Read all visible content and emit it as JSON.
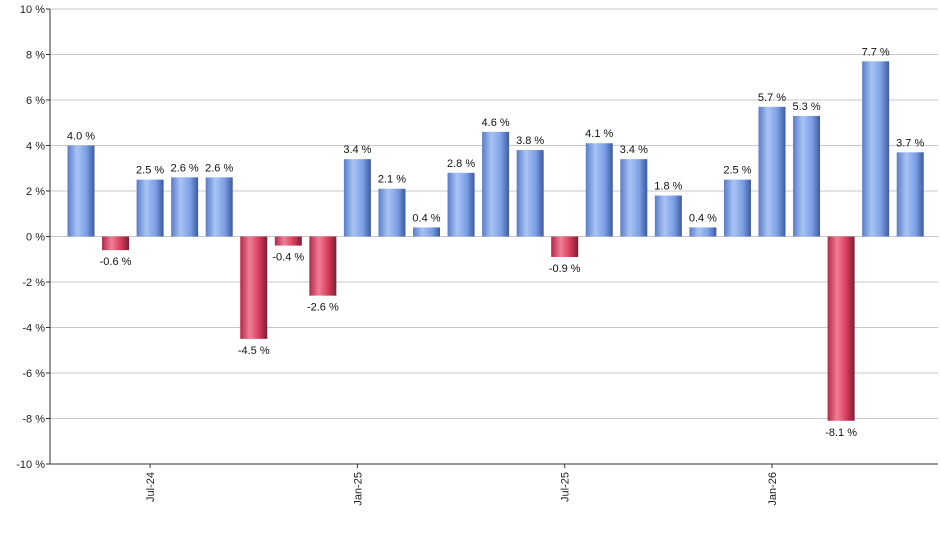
{
  "chart_data": {
    "type": "bar",
    "title": "",
    "xlabel": "",
    "ylabel": "",
    "ylim": [
      -10,
      10
    ],
    "y_ticks": [
      10,
      8,
      6,
      4,
      2,
      0,
      -2,
      -4,
      -6,
      -8,
      -10
    ],
    "y_tick_labels": [
      "10 %",
      "8 %",
      "6 %",
      "4 %",
      "2 %",
      "0 %",
      "-2 %",
      "-4 %",
      "-6 %",
      "-8 %",
      "-10 %"
    ],
    "grid": true,
    "legend": "none",
    "x_tick_labels": [
      {
        "label": "Jul-24",
        "index": 2
      },
      {
        "label": "Jan-25",
        "index": 8
      },
      {
        "label": "Jul-25",
        "index": 14
      },
      {
        "label": "Jan-26",
        "index": 20
      }
    ],
    "values": [
      4.0,
      -0.6,
      2.5,
      2.6,
      2.6,
      -4.5,
      -0.4,
      -2.6,
      3.4,
      2.1,
      0.4,
      2.8,
      4.6,
      3.8,
      -0.9,
      4.1,
      3.4,
      1.8,
      0.4,
      2.5,
      5.7,
      5.3,
      -8.1,
      7.7,
      3.7
    ],
    "data_labels": [
      "4.0 %",
      "-0.6 %",
      "2.5 %",
      "2.6 %",
      "2.6 %",
      "-4.5 %",
      "-0.4 %",
      "-2.6 %",
      "3.4 %",
      "2.1 %",
      "0.4 %",
      "2.8 %",
      "4.6 %",
      "3.8 %",
      "-0.9 %",
      "4.1 %",
      "3.4 %",
      "1.8 %",
      "0.4 %",
      "2.5 %",
      "5.7 %",
      "5.3 %",
      "-8.1 %",
      "7.7 %",
      "3.7 %"
    ],
    "colors": {
      "positive_light": "#a9c4f5",
      "positive_mid": "#7b9fe6",
      "positive_dark": "#3d5a9e",
      "negative_light": "#f07e96",
      "negative_mid": "#d83a5c",
      "negative_dark": "#7a1f33",
      "grid": "#c8c8c8",
      "axis": "#333333"
    }
  }
}
